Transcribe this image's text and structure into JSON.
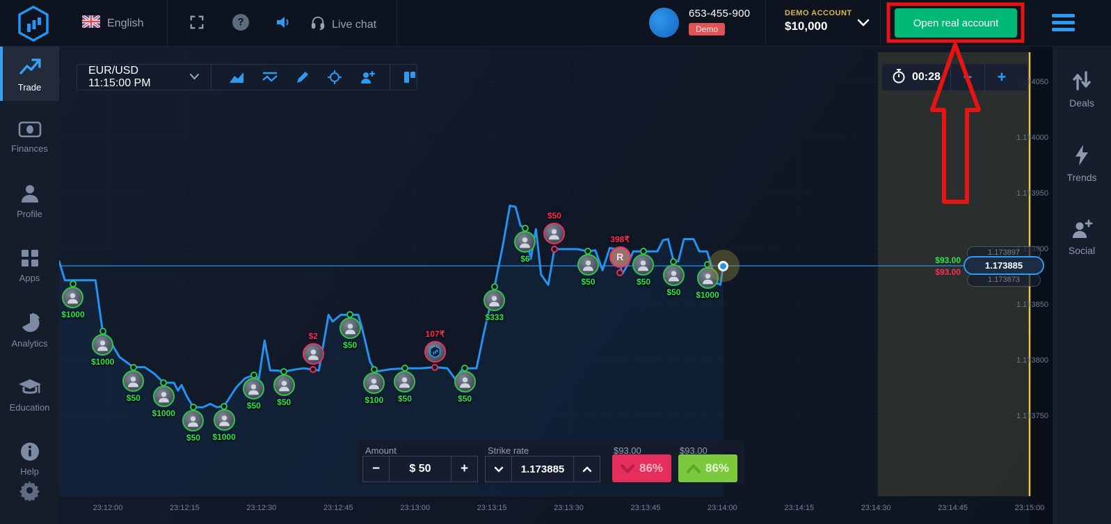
{
  "topbar": {
    "language": "English",
    "live_chat": "Live chat",
    "account_id": "653-455-900",
    "demo_badge": "Demo",
    "account_type": "DEMO ACCOUNT",
    "balance": "$10,000",
    "open_real_account": "Open real account"
  },
  "nav_left": {
    "items": [
      {
        "label": "Trade",
        "active": true
      },
      {
        "label": "Finances"
      },
      {
        "label": "Profile"
      },
      {
        "label": "Apps"
      },
      {
        "label": "Analytics"
      },
      {
        "label": "Education"
      },
      {
        "label": "Help"
      }
    ]
  },
  "nav_right": {
    "items": [
      {
        "label": "Deals"
      },
      {
        "label": "Trends"
      },
      {
        "label": "Social"
      }
    ]
  },
  "chart_header": {
    "symbol": "EUR/USD 11:15:00 PM"
  },
  "timer": {
    "value": "00:28",
    "minus": "−",
    "plus": "+"
  },
  "price_tag": {
    "current": "1.173885",
    "above": "1.173897",
    "below": "1.173873",
    "payout_up": "$93.00",
    "payout_down": "$93.00"
  },
  "trade_panel": {
    "amount_label": "Amount",
    "amount_value": "$ 50",
    "minus": "−",
    "plus": "+",
    "strike_label": "Strike rate",
    "strike_value": "1.173885",
    "payout_down": "$93.00",
    "payout_up": "$93.00",
    "down_percent": "86%",
    "up_percent": "86%"
  },
  "colors": {
    "accent_blue": "#2e9bf0",
    "open_real_green": "#00b875",
    "buy_green": "#7cc93f",
    "sell_pink": "#e62e5c",
    "marker_green": "#2ee54e",
    "marker_pink": "#ff2d55",
    "deadline_yellow": "#edc53f",
    "annotation_red": "#e81414"
  },
  "chart_data": {
    "type": "line",
    "symbol": "EUR/USD",
    "x_axis": {
      "start": "23:12:00",
      "end": "23:15:00",
      "interval_sec": 15,
      "ticks": [
        "23:12:00",
        "23:12:15",
        "23:12:30",
        "23:12:45",
        "23:13:00",
        "23:13:15",
        "23:13:30",
        "23:13:45",
        "23:14:00",
        "23:14:15",
        "23:14:30",
        "23:14:45",
        "23:15:00"
      ]
    },
    "y_axis": {
      "min": 1.17375,
      "max": 1.17405,
      "ticks": [
        "1.174050",
        "1.174000",
        "1.173950",
        "1.173900",
        "1.173850",
        "1.173800",
        "1.173750"
      ]
    },
    "current_price": 1.173885,
    "deadline_time": "23:15:00",
    "series": [
      [
        -9.5,
        1.173889
      ],
      [
        -8.4,
        1.173872
      ],
      [
        -2.4,
        1.173872
      ],
      [
        -1.0,
        1.173826
      ],
      [
        0.1,
        1.17382
      ],
      [
        2.3,
        1.173803
      ],
      [
        5.0,
        1.173794
      ],
      [
        7.2,
        1.173794
      ],
      [
        9.1,
        1.173788
      ],
      [
        10.9,
        1.17378
      ],
      [
        12.9,
        1.17378
      ],
      [
        13.7,
        1.173773
      ],
      [
        14.4,
        1.173778
      ],
      [
        15.4,
        1.173768
      ],
      [
        16.7,
        1.173758
      ],
      [
        18.6,
        1.173758
      ],
      [
        20.0,
        1.173761
      ],
      [
        21.3,
        1.173758
      ],
      [
        22.7,
        1.173759
      ],
      [
        25.1,
        1.173776
      ],
      [
        26.8,
        1.173784
      ],
      [
        28.5,
        1.173787
      ],
      [
        29.5,
        1.173784
      ],
      [
        30.6,
        1.173818
      ],
      [
        31.7,
        1.173791
      ],
      [
        33.0,
        1.173791
      ],
      [
        34.4,
        1.17379
      ],
      [
        36.7,
        1.173792
      ],
      [
        38.3,
        1.173793
      ],
      [
        41.2,
        1.173791
      ],
      [
        43.1,
        1.173841
      ],
      [
        43.9,
        1.173835
      ],
      [
        45.5,
        1.173841
      ],
      [
        48.9,
        1.173841
      ],
      [
        49.6,
        1.17383
      ],
      [
        51.2,
        1.173799
      ],
      [
        52.3,
        1.17379
      ],
      [
        55.0,
        1.173792
      ],
      [
        58.0,
        1.173793
      ],
      [
        61.1,
        1.173793
      ],
      [
        63.9,
        1.173794
      ],
      [
        66.3,
        1.173793
      ],
      [
        67.9,
        1.173783
      ],
      [
        69.0,
        1.173791
      ],
      [
        69.7,
        1.173793
      ],
      [
        72.0,
        1.173793
      ],
      [
        73.4,
        1.173824
      ],
      [
        75.5,
        1.173866
      ],
      [
        77.2,
        1.173905
      ],
      [
        78.5,
        1.173939
      ],
      [
        79.6,
        1.173938
      ],
      [
        80.6,
        1.173921
      ],
      [
        81.5,
        1.173919
      ],
      [
        82.6,
        1.173891
      ],
      [
        83.6,
        1.173918
      ],
      [
        84.6,
        1.173877
      ],
      [
        86.0,
        1.173868
      ],
      [
        87.2,
        1.1739
      ],
      [
        91.7,
        1.1739
      ],
      [
        93.8,
        1.173898
      ],
      [
        95.2,
        1.173899
      ],
      [
        96.6,
        1.173881
      ],
      [
        98.0,
        1.173901
      ],
      [
        99.3,
        1.1739
      ],
      [
        100.0,
        1.173886
      ],
      [
        100.5,
        1.173878
      ],
      [
        101.5,
        1.173886
      ],
      [
        102.6,
        1.173898
      ],
      [
        104.6,
        1.173898
      ],
      [
        107.3,
        1.173898
      ],
      [
        108.4,
        1.173908
      ],
      [
        109.4,
        1.173909
      ],
      [
        110.5,
        1.173889
      ],
      [
        111.4,
        1.173889
      ],
      [
        112.5,
        1.173909
      ],
      [
        114.4,
        1.173909
      ],
      [
        115.5,
        1.173898
      ],
      [
        117.0,
        1.173898
      ],
      [
        117.8,
        1.173886
      ],
      [
        118.7,
        1.17387
      ],
      [
        119.6,
        1.173868
      ],
      [
        120.2,
        1.173885
      ]
    ],
    "markers": [
      {
        "t": -6.8,
        "price": 1.173869,
        "label": "$1000",
        "side": "up"
      },
      {
        "t": -1.0,
        "price": 1.173826,
        "label": "$1000",
        "side": "up"
      },
      {
        "t": 5.0,
        "price": 1.173794,
        "label": "$50",
        "side": "up"
      },
      {
        "t": 10.9,
        "price": 1.17378,
        "label": "$1000",
        "side": "up"
      },
      {
        "t": 16.7,
        "price": 1.173758,
        "label": "$50",
        "side": "up"
      },
      {
        "t": 22.7,
        "price": 1.173759,
        "label": "$1000",
        "side": "up"
      },
      {
        "t": 28.5,
        "price": 1.173787,
        "label": "$50",
        "side": "up"
      },
      {
        "t": 34.4,
        "price": 1.17379,
        "label": "$50",
        "side": "up"
      },
      {
        "t": 40.1,
        "price": 1.173792,
        "label": "$2",
        "side": "down"
      },
      {
        "t": 47.3,
        "price": 1.173841,
        "label": "$50",
        "side": "up"
      },
      {
        "t": 52.0,
        "price": 1.173792,
        "label": "$100",
        "side": "up"
      },
      {
        "t": 58.0,
        "price": 1.173793,
        "label": "$50",
        "side": "up"
      },
      {
        "t": 63.9,
        "price": 1.173794,
        "label": "107₹",
        "side": "down",
        "variant": "logo"
      },
      {
        "t": 69.7,
        "price": 1.173793,
        "label": "$50",
        "side": "up"
      },
      {
        "t": 75.5,
        "price": 1.173866,
        "label": "$333",
        "side": "up"
      },
      {
        "t": 81.5,
        "price": 1.173919,
        "label": "$6",
        "side": "up"
      },
      {
        "t": 87.2,
        "price": 1.1739,
        "label": "$50",
        "side": "down"
      },
      {
        "t": 93.8,
        "price": 1.173898,
        "label": "$50",
        "side": "up"
      },
      {
        "t": 100.0,
        "price": 1.173879,
        "label": "398₹",
        "side": "down",
        "variant": "R"
      },
      {
        "t": 104.6,
        "price": 1.173898,
        "label": "$50",
        "side": "up"
      },
      {
        "t": 110.5,
        "price": 1.173889,
        "label": "$50",
        "side": "up"
      },
      {
        "t": 117.1,
        "price": 1.173886,
        "label": "$1000",
        "side": "up"
      }
    ]
  }
}
